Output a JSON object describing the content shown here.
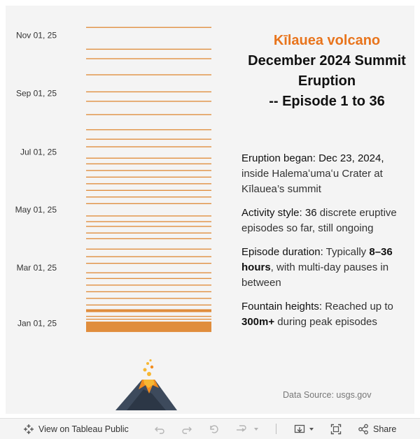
{
  "chart_data": {
    "type": "timeline",
    "y_axis": {
      "type": "date",
      "range": [
        "2024-12-20",
        "2025-11-20"
      ]
    },
    "tick_labels": [
      {
        "date": "2025-01-01",
        "label": "Jan 01, 25"
      },
      {
        "date": "2025-03-01",
        "label": "Mar 01, 25"
      },
      {
        "date": "2025-05-01",
        "label": "May 01, 25"
      },
      {
        "date": "2025-07-01",
        "label": "Jul 01, 25"
      },
      {
        "date": "2025-09-01",
        "label": "Sep 01, 25"
      },
      {
        "date": "2025-11-01",
        "label": "Nov 01, 25"
      }
    ],
    "bar_color": "#e08d3c",
    "episodes": [
      {
        "start": "2024-12-23",
        "end": "2025-01-02"
      },
      {
        "start": "2025-01-05",
        "end": "2025-01-05"
      },
      {
        "start": "2025-01-08",
        "end": "2025-01-08"
      },
      {
        "start": "2025-01-13",
        "end": "2025-01-15"
      },
      {
        "start": "2025-01-20",
        "end": "2025-01-20"
      },
      {
        "start": "2025-01-27",
        "end": "2025-01-27"
      },
      {
        "start": "2025-02-03",
        "end": "2025-02-03"
      },
      {
        "start": "2025-02-10",
        "end": "2025-02-10"
      },
      {
        "start": "2025-02-17",
        "end": "2025-02-17"
      },
      {
        "start": "2025-02-23",
        "end": "2025-02-23"
      },
      {
        "start": "2025-03-05",
        "end": "2025-03-05"
      },
      {
        "start": "2025-03-12",
        "end": "2025-03-12"
      },
      {
        "start": "2025-03-20",
        "end": "2025-03-20"
      },
      {
        "start": "2025-03-31",
        "end": "2025-03-31"
      },
      {
        "start": "2025-04-06",
        "end": "2025-04-06"
      },
      {
        "start": "2025-04-13",
        "end": "2025-04-13"
      },
      {
        "start": "2025-04-18",
        "end": "2025-04-18"
      },
      {
        "start": "2025-04-24",
        "end": "2025-04-24"
      },
      {
        "start": "2025-05-07",
        "end": "2025-05-07"
      },
      {
        "start": "2025-05-14",
        "end": "2025-05-14"
      },
      {
        "start": "2025-05-21",
        "end": "2025-05-21"
      },
      {
        "start": "2025-05-28",
        "end": "2025-05-28"
      },
      {
        "start": "2025-06-04",
        "end": "2025-06-04"
      },
      {
        "start": "2025-06-11",
        "end": "2025-06-11"
      },
      {
        "start": "2025-06-18",
        "end": "2025-06-18"
      },
      {
        "start": "2025-06-24",
        "end": "2025-06-24"
      },
      {
        "start": "2025-07-06",
        "end": "2025-07-06"
      },
      {
        "start": "2025-07-14",
        "end": "2025-07-14"
      },
      {
        "start": "2025-07-24",
        "end": "2025-07-24"
      },
      {
        "start": "2025-08-09",
        "end": "2025-08-09"
      },
      {
        "start": "2025-08-23",
        "end": "2025-08-23"
      },
      {
        "start": "2025-09-02",
        "end": "2025-09-02"
      },
      {
        "start": "2025-09-20",
        "end": "2025-09-20"
      },
      {
        "start": "2025-10-07",
        "end": "2025-10-07"
      },
      {
        "start": "2025-10-17",
        "end": "2025-10-17"
      },
      {
        "start": "2025-11-09",
        "end": "2025-11-09"
      }
    ]
  },
  "title": {
    "volcano": "Kīlauea volcano",
    "line1": "December 2024 Summit",
    "line2": "Eruption",
    "line3": "-- Episode 1 to 36"
  },
  "facts": {
    "began_key": "Eruption began:",
    "began_value": "Dec 23, 2024,",
    "began_rest": "inside Halemaʻumaʻu Crater at Kīlauea’s summit",
    "style_key": "Activity style:",
    "style_count": "36",
    "style_rest": "discrete eruptive episodes so far, still ongoing",
    "duration_key": "Episode duration:",
    "duration_pre": "Typically",
    "duration_value": "8–36 hours",
    "duration_rest": ", with multi-day pauses in between",
    "fountain_key": "Fountain heights:",
    "fountain_pre": "Reached up to",
    "fountain_value": "300m+",
    "fountain_rest": " during peak episodes"
  },
  "source": "Data Source: usgs.gov",
  "icons": {
    "volcano": "volcano-icon",
    "view": "tableau-icon",
    "undo": "undo-icon",
    "redo": "redo-icon",
    "revert": "revert-icon",
    "refresh": "refresh-icon",
    "download": "download-icon",
    "fullscreen": "fullscreen-icon",
    "share": "share-icon"
  },
  "toolbar": {
    "view_label": "View on Tableau Public",
    "share_label": "Share"
  }
}
